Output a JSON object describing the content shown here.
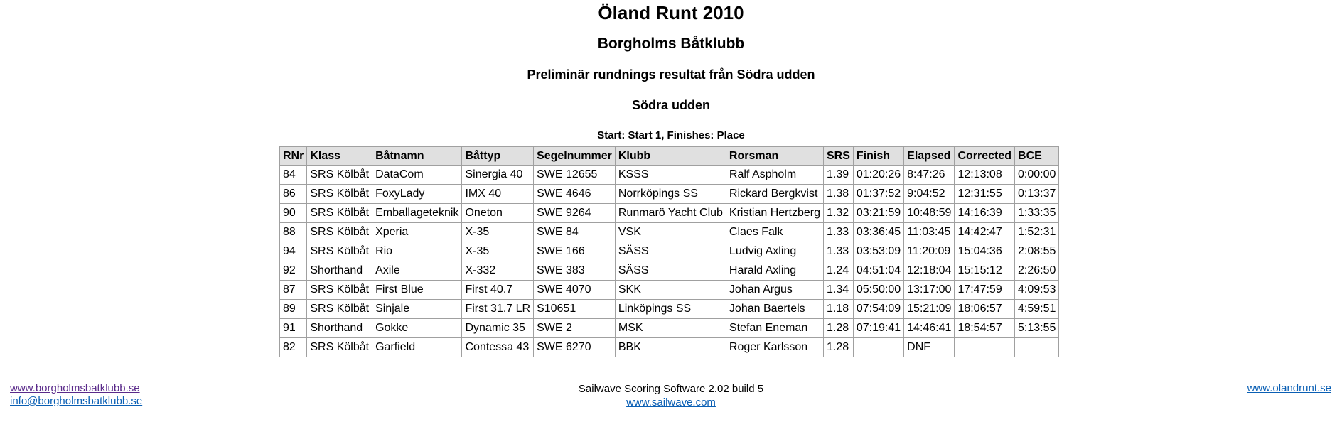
{
  "header": {
    "title": "Öland Runt 2010",
    "club": "Borgholms Båtklubb",
    "subtitle": "Preliminär rundnings resultat från Södra udden",
    "section": "Södra udden",
    "start_line": "Start: Start 1, Finishes: Place"
  },
  "table": {
    "columns": [
      "RNr",
      "Klass",
      "Båtnamn",
      "Båttyp",
      "Segelnummer",
      "Klubb",
      "Rorsman",
      "SRS",
      "Finish",
      "Elapsed",
      "Corrected",
      "BCE"
    ],
    "rows": [
      [
        "84",
        "SRS Kölbåt",
        "DataCom",
        "Sinergia 40",
        "SWE 12655",
        "KSSS",
        "Ralf Aspholm",
        "1.39",
        "01:20:26",
        "8:47:26",
        "12:13:08",
        "0:00:00"
      ],
      [
        "86",
        "SRS Kölbåt",
        "FoxyLady",
        "IMX 40",
        "SWE 4646",
        "Norrköpings SS",
        "Rickard Bergkvist",
        "1.38",
        "01:37:52",
        "9:04:52",
        "12:31:55",
        "0:13:37"
      ],
      [
        "90",
        "SRS Kölbåt",
        "Emballageteknik",
        "Oneton",
        "SWE 9264",
        "Runmarö Yacht Club",
        "Kristian Hertzberg",
        "1.32",
        "03:21:59",
        "10:48:59",
        "14:16:39",
        "1:33:35"
      ],
      [
        "88",
        "SRS Kölbåt",
        "Xperia",
        "X-35",
        "SWE 84",
        "VSK",
        "Claes Falk",
        "1.33",
        "03:36:45",
        "11:03:45",
        "14:42:47",
        "1:52:31"
      ],
      [
        "94",
        "SRS Kölbåt",
        "Rio",
        "X-35",
        "SWE 166",
        "SÄSS",
        "Ludvig Axling",
        "1.33",
        "03:53:09",
        "11:20:09",
        "15:04:36",
        "2:08:55"
      ],
      [
        "92",
        "Shorthand",
        "Axile",
        "X-332",
        "SWE 383",
        "SÄSS",
        "Harald Axling",
        "1.24",
        "04:51:04",
        "12:18:04",
        "15:15:12",
        "2:26:50"
      ],
      [
        "87",
        "SRS Kölbåt",
        "First Blue",
        "First 40.7",
        "SWE 4070",
        "SKK",
        "Johan Argus",
        "1.34",
        "05:50:00",
        "13:17:00",
        "17:47:59",
        "4:09:53"
      ],
      [
        "89",
        "SRS Kölbåt",
        "Sinjale",
        "First 31.7 LR",
        "S10651",
        "Linköpings SS",
        "Johan Baertels",
        "1.18",
        "07:54:09",
        "15:21:09",
        "18:06:57",
        "4:59:51"
      ],
      [
        "91",
        "Shorthand",
        "Gokke",
        "Dynamic 35",
        "SWE 2",
        "MSK",
        "Stefan Eneman",
        "1.28",
        "07:19:41",
        "14:46:41",
        "18:54:57",
        "5:13:55"
      ],
      [
        "82",
        "SRS Kölbåt",
        "Garfield",
        "Contessa 43",
        "SWE 6270",
        "BBK",
        "Roger Karlsson",
        "1.28",
        "",
        "DNF",
        "",
        ""
      ]
    ]
  },
  "footer": {
    "left_link_1": "www.borgholmsbatklubb.se",
    "left_link_2": "info@borgholmsbatklubb.se",
    "center_text": "Sailwave Scoring Software 2.02 build 5",
    "center_link": "www.sailwave.com",
    "right_link": "www.olandrunt.se"
  }
}
